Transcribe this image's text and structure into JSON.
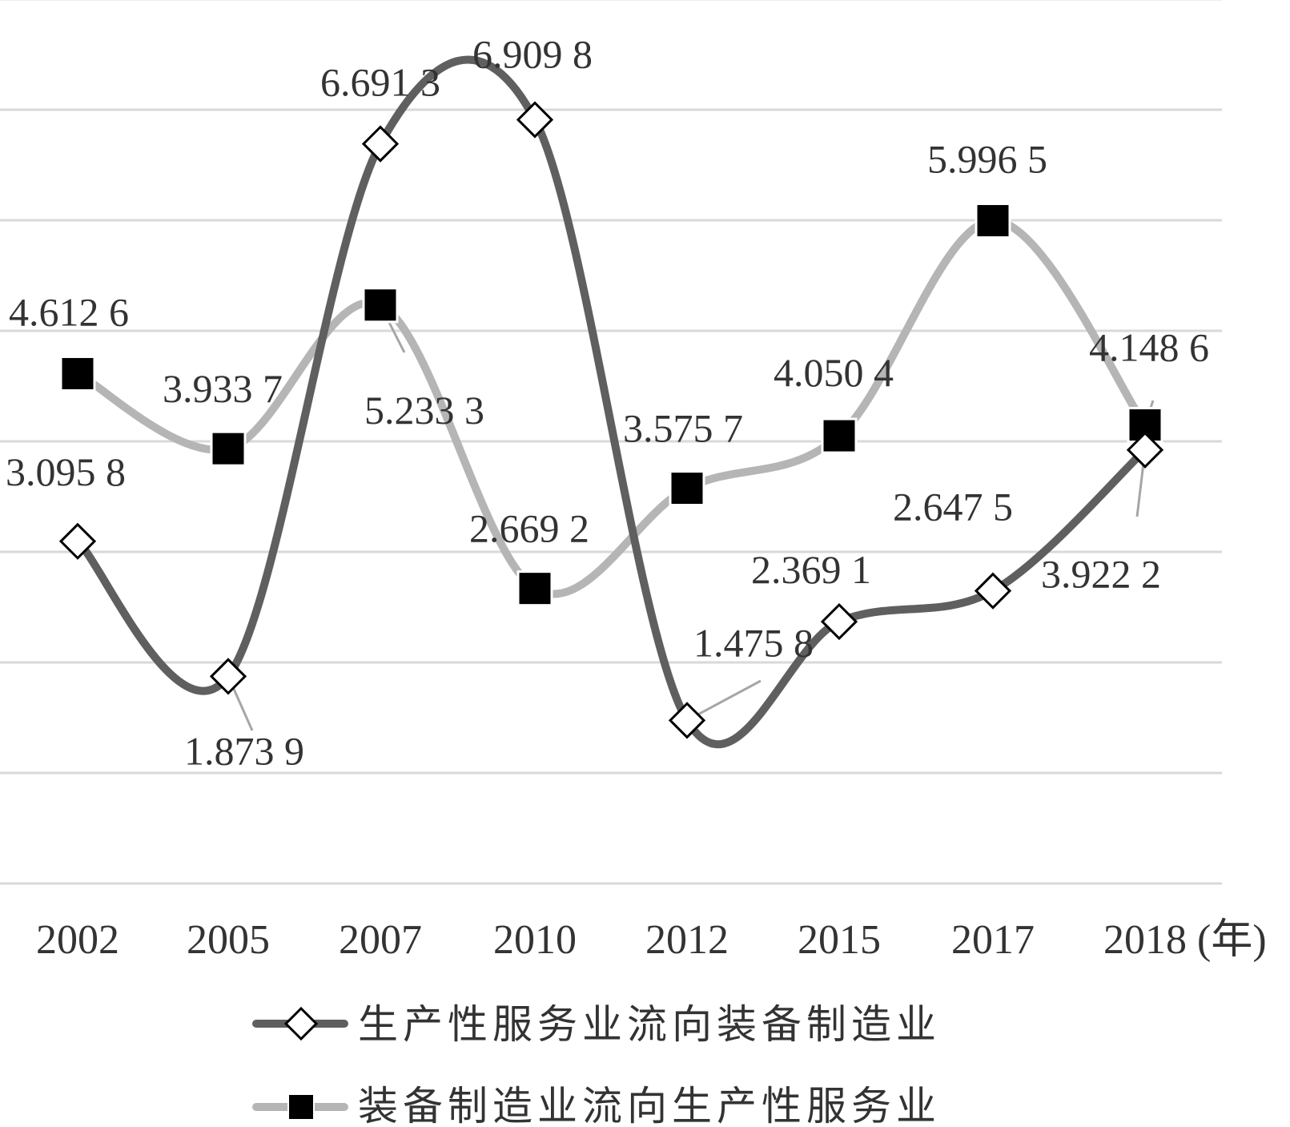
{
  "chart_data": {
    "type": "line",
    "categories": [
      "2002",
      "2005",
      "2007",
      "2010",
      "2012",
      "2015",
      "2017",
      "2018"
    ],
    "x_unit": "(年)",
    "ylim": [
      0,
      8
    ],
    "grid": true,
    "legend_position": "bottom",
    "series": [
      {
        "name": "生产性服务业流向装备制造业",
        "values": [
          3.0958,
          1.8739,
          6.6913,
          6.9098,
          1.4758,
          2.3691,
          2.6475,
          3.9222
        ],
        "labels": [
          "3.095 8",
          "1.873 9",
          "6.691 3",
          "6.909 8",
          "1.475 8",
          "2.369 1",
          "2.647 5",
          "3.922 2"
        ],
        "color": "#5f5f5f",
        "marker": "diamond-open"
      },
      {
        "name": "装备制造业流向生产性服务业",
        "values": [
          4.6126,
          3.9337,
          5.2333,
          2.6692,
          3.5757,
          4.0504,
          5.9965,
          4.1486
        ],
        "labels": [
          "4.612 6",
          "3.933 7",
          "5.233 3",
          "2.669 2",
          "3.575 7",
          "4.050 4",
          "5.996 5",
          "4.148 6"
        ],
        "color": "#b5b5b5",
        "marker": "square-filled"
      }
    ]
  }
}
